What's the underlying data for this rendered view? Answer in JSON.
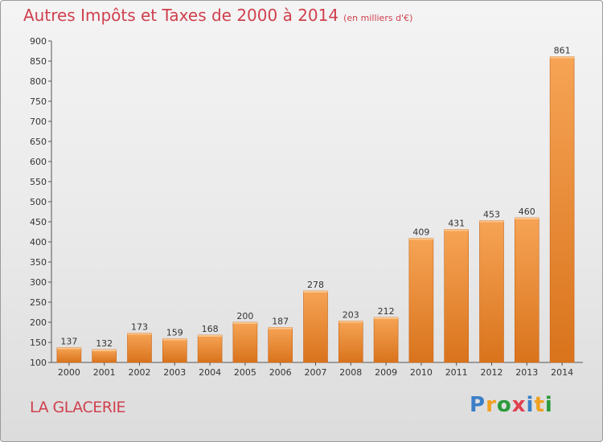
{
  "chart_data": {
    "type": "bar",
    "title": "Autres Impôts et Taxes de 2000 à 2014",
    "subtitle": "(en milliers d'€)",
    "categories": [
      "2000",
      "2001",
      "2002",
      "2003",
      "2004",
      "2005",
      "2006",
      "2007",
      "2008",
      "2009",
      "2010",
      "2011",
      "2012",
      "2013",
      "2014"
    ],
    "values": [
      137,
      132,
      173,
      159,
      168,
      200,
      187,
      278,
      203,
      212,
      409,
      431,
      453,
      460,
      861
    ],
    "ylim": [
      100,
      900
    ],
    "yticks": [
      100,
      150,
      200,
      250,
      300,
      350,
      400,
      450,
      500,
      550,
      600,
      650,
      700,
      750,
      800,
      850,
      900
    ],
    "grid": false,
    "bar_color": "#f0903a",
    "xlabel": "",
    "ylabel": ""
  },
  "place_name": "LA GLACERIE",
  "brand": {
    "letters": [
      "P",
      "r",
      "o",
      "x",
      "i",
      "t",
      "i"
    ],
    "colors": [
      "#3a7fc8",
      "#f0a020",
      "#2a9a3a",
      "#e04050",
      "#3a7fc8",
      "#f0a020",
      "#2a9a3a"
    ]
  }
}
